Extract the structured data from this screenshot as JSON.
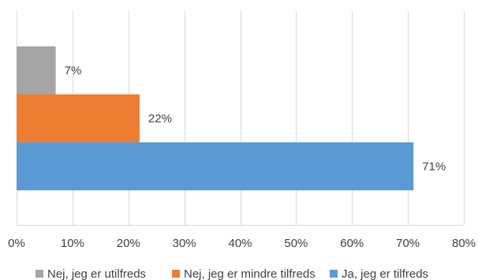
{
  "chart_data": {
    "type": "bar",
    "orientation": "horizontal",
    "stacked": false,
    "series": [
      {
        "name": "Nej, jeg er utilfreds",
        "value": 0.07,
        "label": "7%",
        "color": "#a5a5a5"
      },
      {
        "name": "Nej, jeg er mindre tilfreds",
        "value": 0.22,
        "label": "22%",
        "color": "#ed7d31"
      },
      {
        "name": "Ja, jeg er tilfreds",
        "value": 0.71,
        "label": "71%",
        "color": "#5b9bd5"
      }
    ],
    "xlim": [
      0,
      0.8
    ],
    "xticks": [
      0,
      0.1,
      0.2,
      0.3,
      0.4,
      0.5,
      0.6,
      0.7,
      0.8
    ],
    "xtick_labels": [
      "0%",
      "10%",
      "20%",
      "30%",
      "40%",
      "50%",
      "60%",
      "70%",
      "80%"
    ],
    "grid": true,
    "legend_position": "bottom",
    "title": "",
    "xlabel": "",
    "ylabel": ""
  }
}
